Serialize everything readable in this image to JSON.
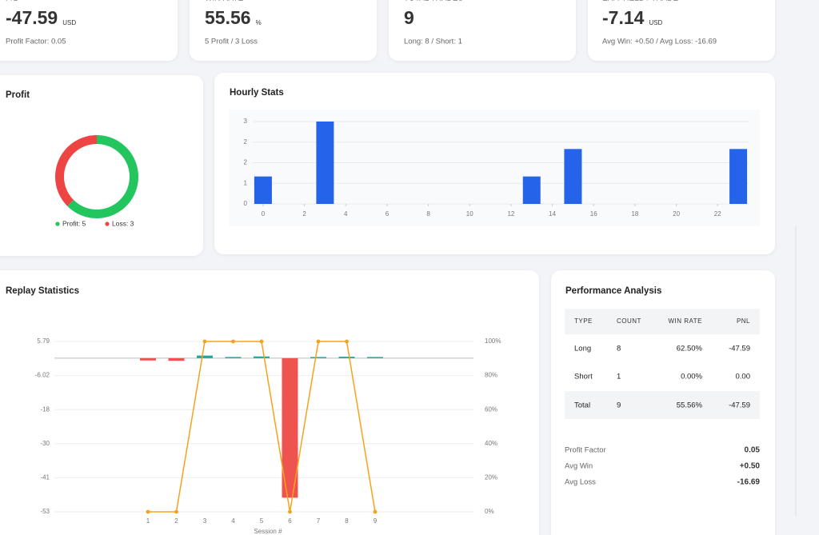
{
  "cards": [
    {
      "label": "P/L",
      "value": "-47.59",
      "unit": "USD",
      "sub": "Profit Factor: 0.05",
      "color": "#dc3545"
    },
    {
      "label": "WIN RATE",
      "value": "55.56",
      "unit": "%",
      "sub": "5 Profit / 3 Loss",
      "color": "#3b6fe0"
    },
    {
      "label": "TOTAL TRADES",
      "value": "9",
      "sub": "Long: 8 / Short: 1",
      "color": "#111111"
    },
    {
      "label": "EXP. YIELD / TRADE",
      "value": "-7.14",
      "unit": "USD",
      "sub": "Avg Win: +0.50 / Avg Loss: -16.69",
      "color": "#dc3545"
    }
  ],
  "chart_data": [
    {
      "type": "donut",
      "title": "Profit",
      "categories": [
        "Profit",
        "Loss"
      ],
      "values": [
        5,
        3
      ],
      "colors": [
        "#22c55e",
        "#ef4444"
      ],
      "legend_labels": [
        "Profit: 5",
        "Loss: 3"
      ]
    },
    {
      "type": "bar",
      "title": "Hourly Stats",
      "x": [
        0,
        3,
        13,
        15,
        23
      ],
      "values": [
        1,
        3,
        1,
        2,
        2
      ],
      "color": "#2563eb",
      "xlim": [
        -0.5,
        23.5
      ],
      "xticks": [
        0,
        2,
        4,
        6,
        8,
        10,
        12,
        14,
        16,
        18,
        20,
        22
      ],
      "ylim": [
        0,
        3
      ],
      "yticks": [
        0,
        {
          "value": 0.75,
          "label": "1"
        },
        {
          "value": 1.5,
          "label": "2"
        },
        {
          "value": 2.25,
          "label": "2"
        },
        3
      ],
      "grid": true
    },
    {
      "type": "combo",
      "title": "Replay Statistics",
      "x_label": "Session #",
      "categories": [
        "1",
        "2",
        "3",
        "4",
        "5",
        "6",
        "7",
        "8",
        "9"
      ],
      "ylim": [
        -53.26,
        5.79
      ],
      "yticks": [
        {
          "value": 5.79,
          "label": "5.79"
        },
        {
          "value": -6.02,
          "label": "-6.02"
        },
        {
          "value": -17.83,
          "label": "-18"
        },
        {
          "value": -29.64,
          "label": "-30"
        },
        {
          "value": -41.45,
          "label": "-41"
        },
        {
          "value": -53.26,
          "label": "-53"
        }
      ],
      "y2lim": [
        0,
        100
      ],
      "y2ticks": [
        {
          "value": 0,
          "label": "0%"
        },
        {
          "value": 20,
          "label": "20%"
        },
        {
          "value": 40,
          "label": "40%"
        },
        {
          "value": 60,
          "label": "60%"
        },
        {
          "value": 80,
          "label": "80%"
        },
        {
          "value": 100,
          "label": "100%"
        }
      ],
      "grid": true,
      "series": [
        {
          "type": "bar",
          "positive_color": "#26a69a",
          "negative_color": "#ef5350",
          "values": [
            -0.8,
            -0.9,
            0.9,
            0.2,
            0.6,
            -48.37,
            0.3,
            0.5,
            0
          ]
        },
        {
          "type": "line",
          "axis": "y2",
          "color": "#f7a21b",
          "values": [
            0,
            0,
            100,
            100,
            100,
            0,
            100,
            100,
            0
          ]
        }
      ]
    }
  ],
  "performance": {
    "title": "Performance Analysis",
    "columns": [
      "TYPE",
      "COUNT",
      "WIN RATE",
      "PNL"
    ],
    "rows": [
      [
        "Long",
        "8",
        "62.50%",
        "-47.59"
      ],
      [
        "Short",
        "1",
        "0.00%",
        "0.00"
      ],
      [
        "Total",
        "9",
        "55.56%",
        "-47.59"
      ]
    ],
    "stats": [
      {
        "label": "Profit Factor",
        "value": "0.05",
        "color": "#222222"
      },
      {
        "label": "Avg Win",
        "value": "+0.50",
        "color": "#2e9e6e"
      },
      {
        "label": "Avg Loss",
        "value": "-16.69",
        "color": "#dc3545"
      }
    ]
  }
}
